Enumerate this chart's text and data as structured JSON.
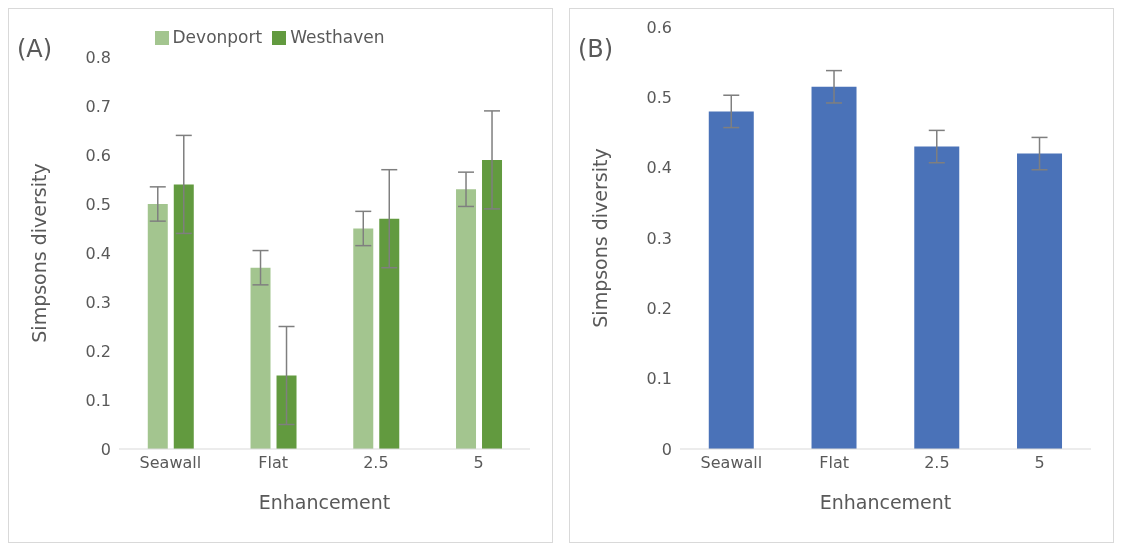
{
  "chart_data": [
    {
      "type": "bar",
      "title": "(A)",
      "xlabel": "Enhancement",
      "ylabel": "Simpsons diversity",
      "categories": [
        "Seawall",
        "Flat",
        "2.5",
        "5"
      ],
      "series": [
        {
          "name": "Devonport",
          "color": "#a3c58f",
          "values": [
            0.5,
            0.37,
            0.45,
            0.53
          ],
          "errors": [
            0.035,
            0.035,
            0.035,
            0.035
          ]
        },
        {
          "name": "Westhaven",
          "color": "#629a3f",
          "values": [
            0.54,
            0.15,
            0.47,
            0.59
          ],
          "errors": [
            0.1,
            0.1,
            0.1,
            0.1
          ]
        }
      ],
      "ylim": [
        0,
        0.8
      ],
      "yticks": [
        0,
        0.1,
        0.2,
        0.3,
        0.4,
        0.5,
        0.6,
        0.7,
        0.8
      ],
      "legend": "top"
    },
    {
      "type": "bar",
      "title": "(B)",
      "xlabel": "Enhancement",
      "ylabel": "Simpsons diversity",
      "categories": [
        "Seawall",
        "Flat",
        "2.5",
        "5"
      ],
      "series": [
        {
          "color": "#4a72b8",
          "values": [
            0.48,
            0.515,
            0.43,
            0.42
          ],
          "errors": [
            0.023,
            0.023,
            0.023,
            0.023
          ]
        }
      ],
      "ylim": [
        0,
        0.6
      ],
      "yticks": [
        0,
        0.1,
        0.2,
        0.3,
        0.4,
        0.5,
        0.6
      ]
    }
  ]
}
